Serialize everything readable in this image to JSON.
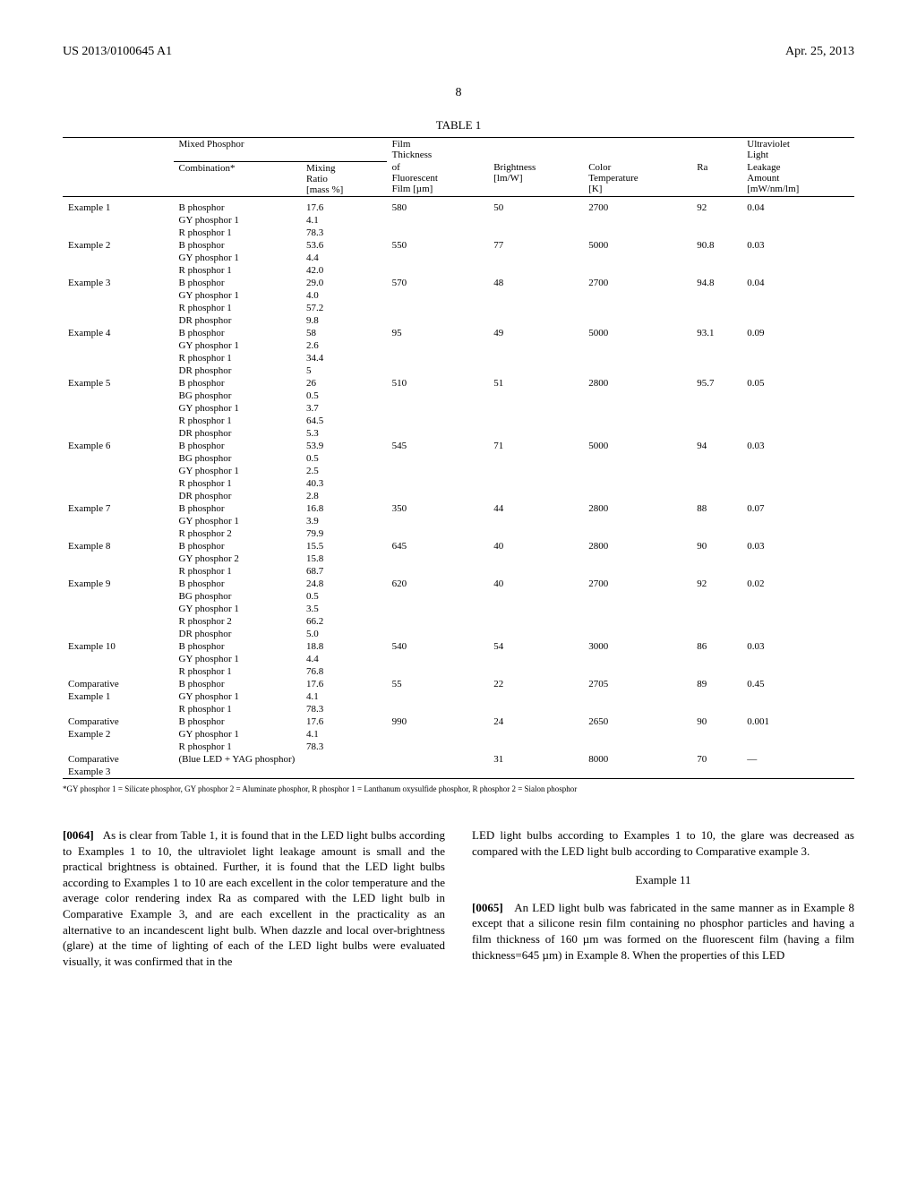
{
  "header": {
    "pub_number": "US 2013/0100645 A1",
    "date": "Apr. 25, 2013"
  },
  "page_number": "8",
  "table": {
    "caption": "TABLE 1",
    "group_headers": {
      "mixed_phosphor": "Mixed Phosphor",
      "film_thickness": "Film\nThickness",
      "uv_light": "Ultraviolet\nLight"
    },
    "col_headers": {
      "blank": "",
      "combination": "Combination*",
      "mixing_ratio": "Mixing\nRatio\n[mass %]",
      "film": "of\nFluorescent\nFilm [µm]",
      "brightness": "Brightness\n[lm/W]",
      "color_temp": "Color\nTemperature\n[K]",
      "ra": "Ra",
      "leakage": "Leakage\nAmount\n[mW/nm/lm]"
    },
    "rows": [
      {
        "label": "Example 1",
        "lines": [
          {
            "c": "B phosphor",
            "r": "17.6",
            "f": "580",
            "b": "50",
            "t": "2700",
            "ra": "92",
            "l": "0.04"
          },
          {
            "c": "GY phosphor 1",
            "r": "4.1"
          },
          {
            "c": "R phosphor 1",
            "r": "78.3"
          }
        ]
      },
      {
        "label": "Example 2",
        "lines": [
          {
            "c": "B phosphor",
            "r": "53.6",
            "f": "550",
            "b": "77",
            "t": "5000",
            "ra": "90.8",
            "l": "0.03"
          },
          {
            "c": "GY phosphor 1",
            "r": "4.4"
          },
          {
            "c": "R phosphor 1",
            "r": "42.0"
          }
        ]
      },
      {
        "label": "Example 3",
        "lines": [
          {
            "c": "B phosphor",
            "r": "29.0",
            "f": "570",
            "b": "48",
            "t": "2700",
            "ra": "94.8",
            "l": "0.04"
          },
          {
            "c": "GY phosphor 1",
            "r": "4.0"
          },
          {
            "c": "R phosphor 1",
            "r": "57.2"
          },
          {
            "c": "DR phosphor",
            "r": "9.8"
          }
        ]
      },
      {
        "label": "Example 4",
        "lines": [
          {
            "c": "B phosphor",
            "r": "58",
            "f": "95",
            "b": "49",
            "t": "5000",
            "ra": "93.1",
            "l": "0.09"
          },
          {
            "c": "GY phosphor 1",
            "r": "2.6"
          },
          {
            "c": "R phosphor 1",
            "r": "34.4"
          },
          {
            "c": "DR phosphor",
            "r": "5"
          }
        ]
      },
      {
        "label": "Example 5",
        "lines": [
          {
            "c": "B phosphor",
            "r": "26",
            "f": "510",
            "b": "51",
            "t": "2800",
            "ra": "95.7",
            "l": "0.05"
          },
          {
            "c": "BG phosphor",
            "r": "0.5"
          },
          {
            "c": "GY phosphor 1",
            "r": "3.7"
          },
          {
            "c": "R phosphor 1",
            "r": "64.5"
          },
          {
            "c": "DR phosphor",
            "r": "5.3"
          }
        ]
      },
      {
        "label": "Example 6",
        "lines": [
          {
            "c": "B phosphor",
            "r": "53.9",
            "f": "545",
            "b": "71",
            "t": "5000",
            "ra": "94",
            "l": "0.03"
          },
          {
            "c": "BG phosphor",
            "r": "0.5"
          },
          {
            "c": "GY phosphor 1",
            "r": "2.5"
          },
          {
            "c": "R phosphor 1",
            "r": "40.3"
          },
          {
            "c": "DR phosphor",
            "r": "2.8"
          }
        ]
      },
      {
        "label": "Example 7",
        "lines": [
          {
            "c": "B phosphor",
            "r": "16.8",
            "f": "350",
            "b": "44",
            "t": "2800",
            "ra": "88",
            "l": "0.07"
          },
          {
            "c": "GY phosphor 1",
            "r": "3.9"
          },
          {
            "c": "R phosphor 2",
            "r": "79.9"
          }
        ]
      },
      {
        "label": "Example 8",
        "lines": [
          {
            "c": "B phosphor",
            "r": "15.5",
            "f": "645",
            "b": "40",
            "t": "2800",
            "ra": "90",
            "l": "0.03"
          },
          {
            "c": "GY phosphor 2",
            "r": "15.8"
          },
          {
            "c": "R phosphor 1",
            "r": "68.7"
          }
        ]
      },
      {
        "label": "Example 9",
        "lines": [
          {
            "c": "B phosphor",
            "r": "24.8",
            "f": "620",
            "b": "40",
            "t": "2700",
            "ra": "92",
            "l": "0.02"
          },
          {
            "c": "BG phosphor",
            "r": "0.5"
          },
          {
            "c": "GY phosphor 1",
            "r": "3.5"
          },
          {
            "c": "R phosphor 2",
            "r": "66.2"
          },
          {
            "c": "DR phosphor",
            "r": "5.0"
          }
        ]
      },
      {
        "label": "Example 10",
        "lines": [
          {
            "c": "B phosphor",
            "r": "18.8",
            "f": "540",
            "b": "54",
            "t": "3000",
            "ra": "86",
            "l": "0.03"
          },
          {
            "c": "GY phosphor 1",
            "r": "4.4"
          },
          {
            "c": "R phosphor 1",
            "r": "76.8"
          }
        ]
      },
      {
        "label": "Comparative",
        "label2": "Example 1",
        "lines": [
          {
            "c": "B phosphor",
            "r": "17.6",
            "f": "55",
            "b": "22",
            "t": "2705",
            "ra": "89",
            "l": "0.45"
          },
          {
            "c": "GY phosphor 1",
            "r": "4.1"
          },
          {
            "c": "R phosphor 1",
            "r": "78.3"
          }
        ]
      },
      {
        "label": "Comparative",
        "label2": "Example 2",
        "lines": [
          {
            "c": "B phosphor",
            "r": "17.6",
            "f": "990",
            "b": "24",
            "t": "2650",
            "ra": "90",
            "l": "0.001"
          },
          {
            "c": "GY phosphor 1",
            "r": "4.1"
          },
          {
            "c": "R phosphor 1",
            "r": "78.3"
          }
        ]
      },
      {
        "label": "Comparative",
        "label2": "Example 3",
        "special": "(Blue LED + YAG phosphor)",
        "lines": [
          {
            "b": "31",
            "t": "8000",
            "ra": "70",
            "l": "—"
          }
        ]
      }
    ],
    "footnote": "*GY phosphor 1 = Silicate phosphor, GY phosphor 2 = Aluminate phosphor, R phosphor 1 = Lanthanum oxysulfide phosphor, R phosphor 2 = Sialon phosphor"
  },
  "paragraphs": {
    "p64_num": "[0064]",
    "p64": "As is clear from Table 1, it is found that in the LED light bulbs according to Examples 1 to 10, the ultraviolet light leakage amount is small and the practical brightness is obtained. Further, it is found that the LED light bulbs according to Examples 1 to 10 are each excellent in the color temperature and the average color rendering index Ra as compared with the LED light bulb in Comparative Example 3, and are each excellent in the practicality as an alternative to an incandescent light bulb. When dazzle and local over-brightness (glare) at the time of lighting of each of the LED light bulbs were evaluated visually, it was confirmed that in the",
    "p64_cont": "LED light bulbs according to Examples 1 to 10, the glare was decreased as compared with the LED light bulb according to Comparative example 3.",
    "ex11_heading": "Example 11",
    "p65_num": "[0065]",
    "p65": "An LED light bulb was fabricated in the same manner as in Example 8 except that a silicone resin film containing no phosphor particles and having a film thickness of 160 µm was formed on the fluorescent film (having a film thickness=645 µm) in Example 8. When the properties of this LED"
  }
}
